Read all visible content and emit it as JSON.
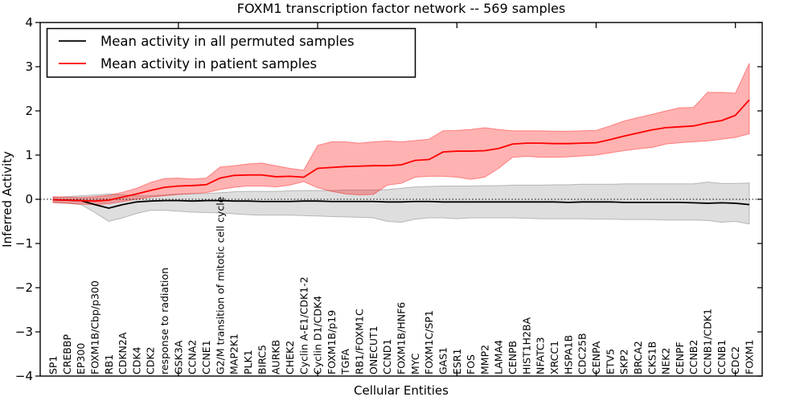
{
  "title": "FOXM1 transcription factor network -- 569 samples",
  "legend": {
    "items": [
      {
        "label": "Mean activity in all permuted samples",
        "color": "#000000"
      },
      {
        "label": "Mean activity in patient samples",
        "color": "#ff0000"
      }
    ]
  },
  "chart_data": {
    "type": "line",
    "title": "FOXM1 transcription factor network -- 569 samples",
    "xlabel": "Cellular Entities",
    "ylabel": "Inferred Activity",
    "ylim": [
      -4,
      4
    ],
    "yticks": [
      4,
      3,
      2,
      1,
      0,
      -1,
      -2,
      -3,
      -4
    ],
    "ytick_labels": [
      "4",
      "3",
      "2",
      "1",
      "0",
      "−1",
      "−2",
      "−3",
      "−4"
    ],
    "x_major_tick_indices": [
      9,
      19,
      29,
      39,
      49
    ],
    "grid": false,
    "zero_line_style": "dotted",
    "legend_position": "upper left",
    "categories": [
      "SP1",
      "CREBBP",
      "EP300",
      "FOXM1B/Cbp/p300",
      "RB1",
      "CDKN2A",
      "CDK4",
      "CDK2",
      "response to radiation",
      "GSK3A",
      "CCNA2",
      "CCNE1",
      "G2/M transition of mitotic cell cycle",
      "MAP2K1",
      "PLK1",
      "BIRC5",
      "AURKB",
      "CHEK2",
      "Cyclin A-E1/CDK1-2",
      "Cyclin D1/CDK4",
      "FOXM1B/p19",
      "TGFA",
      "RB1/FOXM1C",
      "ONECUT1",
      "CCND1",
      "FOXM1B/HNF6",
      "MYC",
      "FOXM1C/SP1",
      "GAS1",
      "ESR1",
      "FOS",
      "MMP2",
      "LAMA4",
      "CENPB",
      "HIST1H2BA",
      "NFATC3",
      "XRCC1",
      "HSPA1B",
      "CDC25B",
      "CENPA",
      "ETV5",
      "SKP2",
      "BRCA2",
      "CKS1B",
      "NEK2",
      "CENPF",
      "CCNB2",
      "CCNB1/CDK1",
      "CCNB1",
      "CDC2",
      "FOXM1"
    ],
    "series": [
      {
        "name": "Mean activity in all permuted samples",
        "color": "#000000",
        "band_opacity": 0.13,
        "values": [
          -0.01,
          -0.02,
          -0.03,
          -0.12,
          -0.2,
          -0.12,
          -0.06,
          -0.04,
          -0.03,
          -0.03,
          -0.04,
          -0.03,
          -0.03,
          -0.04,
          -0.04,
          -0.05,
          -0.05,
          -0.05,
          -0.04,
          -0.04,
          -0.05,
          -0.05,
          -0.05,
          -0.05,
          -0.06,
          -0.06,
          -0.05,
          -0.05,
          -0.06,
          -0.06,
          -0.06,
          -0.06,
          -0.06,
          -0.06,
          -0.06,
          -0.06,
          -0.06,
          -0.07,
          -0.06,
          -0.06,
          -0.06,
          -0.07,
          -0.07,
          -0.07,
          -0.07,
          -0.07,
          -0.08,
          -0.09,
          -0.08,
          -0.09,
          -0.12
        ],
        "band_high": [
          0.04,
          0.06,
          0.08,
          0.1,
          0.12,
          0.1,
          0.08,
          0.08,
          0.1,
          0.12,
          0.12,
          0.13,
          0.15,
          0.17,
          0.18,
          0.18,
          0.18,
          0.19,
          0.2,
          0.2,
          0.2,
          0.21,
          0.21,
          0.21,
          0.22,
          0.25,
          0.28,
          0.29,
          0.3,
          0.3,
          0.3,
          0.31,
          0.31,
          0.32,
          0.32,
          0.32,
          0.33,
          0.33,
          0.34,
          0.34,
          0.34,
          0.35,
          0.35,
          0.35,
          0.35,
          0.35,
          0.35,
          0.39,
          0.36,
          0.36,
          0.37
        ],
        "band_low": [
          -0.06,
          -0.09,
          -0.12,
          -0.3,
          -0.5,
          -0.42,
          -0.32,
          -0.25,
          -0.25,
          -0.27,
          -0.29,
          -0.3,
          -0.31,
          -0.33,
          -0.35,
          -0.36,
          -0.36,
          -0.36,
          -0.37,
          -0.38,
          -0.39,
          -0.4,
          -0.41,
          -0.42,
          -0.5,
          -0.52,
          -0.45,
          -0.42,
          -0.42,
          -0.44,
          -0.42,
          -0.42,
          -0.42,
          -0.42,
          -0.43,
          -0.44,
          -0.44,
          -0.44,
          -0.44,
          -0.45,
          -0.45,
          -0.46,
          -0.46,
          -0.46,
          -0.47,
          -0.47,
          -0.47,
          -0.48,
          -0.52,
          -0.5,
          -0.56
        ]
      },
      {
        "name": "Mean activity in patient samples",
        "color": "#ff0000",
        "band_opacity": 0.3,
        "values": [
          -0.01,
          -0.02,
          -0.03,
          -0.04,
          -0.02,
          0.05,
          0.12,
          0.2,
          0.27,
          0.3,
          0.31,
          0.33,
          0.48,
          0.54,
          0.55,
          0.55,
          0.51,
          0.52,
          0.5,
          0.7,
          0.72,
          0.74,
          0.75,
          0.76,
          0.76,
          0.78,
          0.88,
          0.9,
          1.07,
          1.09,
          1.09,
          1.1,
          1.15,
          1.25,
          1.27,
          1.27,
          1.26,
          1.26,
          1.27,
          1.28,
          1.35,
          1.43,
          1.5,
          1.57,
          1.62,
          1.64,
          1.66,
          1.73,
          1.78,
          1.9,
          2.25
        ],
        "band_high": [
          0.06,
          0.05,
          0.04,
          0.06,
          0.09,
          0.16,
          0.25,
          0.38,
          0.47,
          0.48,
          0.46,
          0.48,
          0.73,
          0.76,
          0.8,
          0.82,
          0.76,
          0.7,
          0.66,
          1.22,
          1.3,
          1.3,
          1.27,
          1.3,
          1.32,
          1.3,
          1.33,
          1.36,
          1.55,
          1.56,
          1.58,
          1.62,
          1.58,
          1.55,
          1.55,
          1.55,
          1.54,
          1.54,
          1.55,
          1.56,
          1.66,
          1.77,
          1.85,
          1.92,
          2.0,
          2.07,
          2.08,
          2.42,
          2.42,
          2.4,
          3.08
        ],
        "band_low": [
          -0.08,
          -0.09,
          -0.11,
          -0.12,
          -0.1,
          -0.05,
          0.0,
          0.05,
          0.08,
          0.11,
          0.13,
          0.15,
          0.22,
          0.27,
          0.3,
          0.3,
          0.28,
          0.32,
          0.4,
          0.26,
          0.18,
          0.12,
          0.1,
          0.11,
          0.32,
          0.36,
          0.5,
          0.52,
          0.52,
          0.5,
          0.45,
          0.5,
          0.7,
          0.95,
          0.97,
          0.95,
          0.95,
          0.96,
          0.98,
          1.0,
          1.05,
          1.1,
          1.14,
          1.17,
          1.25,
          1.28,
          1.3,
          1.32,
          1.36,
          1.4,
          1.48
        ]
      }
    ]
  }
}
